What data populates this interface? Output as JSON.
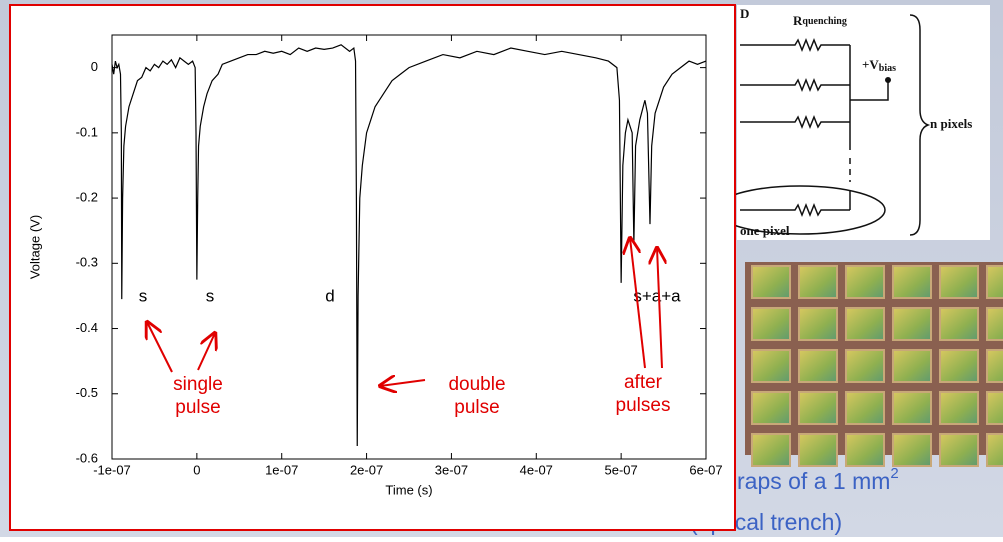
{
  "chart_data": {
    "type": "line",
    "x": [
      -1e-07,
      -9.8e-08,
      -9.6e-08,
      -9.4e-08,
      -9.2e-08,
      -9e-08,
      -8.9e-08,
      -8.85e-08,
      -8.75e-08,
      -8.6e-08,
      -8.4e-08,
      -8e-08,
      -7.5e-08,
      -7e-08,
      -6.5e-08,
      -6e-08,
      -5.5e-08,
      -5e-08,
      -4.5e-08,
      -4e-08,
      -3.5e-08,
      -3e-08,
      -2.5e-08,
      -2e-08,
      -1.5e-08,
      -1e-08,
      -5e-09,
      -2e-09,
      -1e-09,
      0,
      1e-09,
      2e-09,
      4e-09,
      8e-09,
      1.2e-08,
      1.8e-08,
      2.5e-08,
      3e-08,
      4e-08,
      5e-08,
      6e-08,
      7e-08,
      8e-08,
      9e-08,
      1e-07,
      1.1e-07,
      1.2e-07,
      1.3e-07,
      1.4e-07,
      1.5e-07,
      1.6e-07,
      1.7e-07,
      1.8e-07,
      1.85e-07,
      1.87e-07,
      1.88e-07,
      1.89e-07,
      1.9e-07,
      1.92e-07,
      1.95e-07,
      2e-07,
      2.05e-07,
      2.1e-07,
      2.2e-07,
      2.3e-07,
      2.4e-07,
      2.5e-07,
      2.7e-07,
      2.9e-07,
      3.1e-07,
      3.3e-07,
      3.5e-07,
      3.7e-07,
      3.9e-07,
      4.1e-07,
      4.3e-07,
      4.5e-07,
      4.7e-07,
      4.85e-07,
      4.95e-07,
      4.98e-07,
      5e-07,
      5.02e-07,
      5.05e-07,
      5.08e-07,
      5.13e-07,
      5.15e-07,
      5.17e-07,
      5.22e-07,
      5.28e-07,
      5.31e-07,
      5.34e-07,
      5.36e-07,
      5.4e-07,
      5.5e-07,
      5.6e-07,
      5.7e-07,
      5.8e-07,
      5.9e-07,
      6e-07
    ],
    "series": [
      {
        "color": "#000000",
        "values": [
          0.005,
          -0.01,
          0.01,
          0.0,
          0.005,
          -0.01,
          -0.1,
          -0.355,
          -0.2,
          -0.12,
          -0.09,
          -0.06,
          -0.04,
          -0.02,
          -0.015,
          0.0,
          -0.005,
          0.005,
          0.0,
          0.01,
          0.005,
          0.012,
          0.0,
          0.015,
          0.01,
          0.005,
          0.01,
          0.0,
          -0.1,
          -0.325,
          -0.2,
          -0.12,
          -0.09,
          -0.06,
          -0.04,
          -0.02,
          -0.01,
          0.005,
          0.01,
          0.015,
          0.02,
          0.02,
          0.025,
          0.022,
          0.025,
          0.02,
          0.03,
          0.025,
          0.03,
          0.028,
          0.03,
          0.035,
          0.025,
          0.03,
          0.01,
          -0.2,
          -0.58,
          -0.35,
          -0.2,
          -0.15,
          -0.1,
          -0.08,
          -0.06,
          -0.04,
          -0.02,
          -0.01,
          0.0,
          0.01,
          0.02,
          0.015,
          0.025,
          0.02,
          0.03,
          0.025,
          0.02,
          0.025,
          0.02,
          0.015,
          0.01,
          0.0,
          -0.05,
          -0.33,
          -0.15,
          -0.1,
          -0.08,
          -0.1,
          -0.27,
          -0.12,
          -0.08,
          -0.05,
          -0.07,
          -0.24,
          -0.12,
          -0.07,
          -0.03,
          -0.01,
          0.0,
          0.01,
          0.005,
          0.01
        ]
      }
    ],
    "xlim": [
      -1e-07,
      6e-07
    ],
    "ylim": [
      -0.6,
      0.05
    ],
    "xticks": [
      {
        "value": -1e-07,
        "label": "-1e-07"
      },
      0,
      {
        "value": 1e-07,
        "label": "1e-07"
      },
      {
        "value": 2e-07,
        "label": "2e-07"
      },
      {
        "value": 3e-07,
        "label": "3e-07"
      },
      {
        "value": 4e-07,
        "label": "4e-07"
      },
      {
        "value": 5e-07,
        "label": "5e-07"
      },
      {
        "value": 6e-07,
        "label": "6e-07"
      }
    ],
    "yticks": [
      0,
      -0.1,
      -0.2,
      -0.3,
      -0.4,
      -0.5,
      -0.6
    ],
    "x_label": "Time (s)",
    "y_label": "Voltage (V)",
    "annotations": [
      "s",
      "s",
      "d",
      "s+a+a"
    ],
    "callouts": [
      [
        "single",
        "pulse"
      ],
      [
        "double",
        "pulse"
      ],
      [
        "after",
        "pulses"
      ]
    ]
  },
  "slide": {
    "caption": "raps of a 1 mm",
    "caption_sup": "2",
    "caption_line2": "(optical trench)",
    "circuit": {
      "corner": "D",
      "r_main": "R",
      "r_sub": "quenching",
      "v_main": "+V",
      "v_sub": "bias",
      "n_pixels": "n pixels",
      "one_pixel": "one pixel"
    }
  }
}
